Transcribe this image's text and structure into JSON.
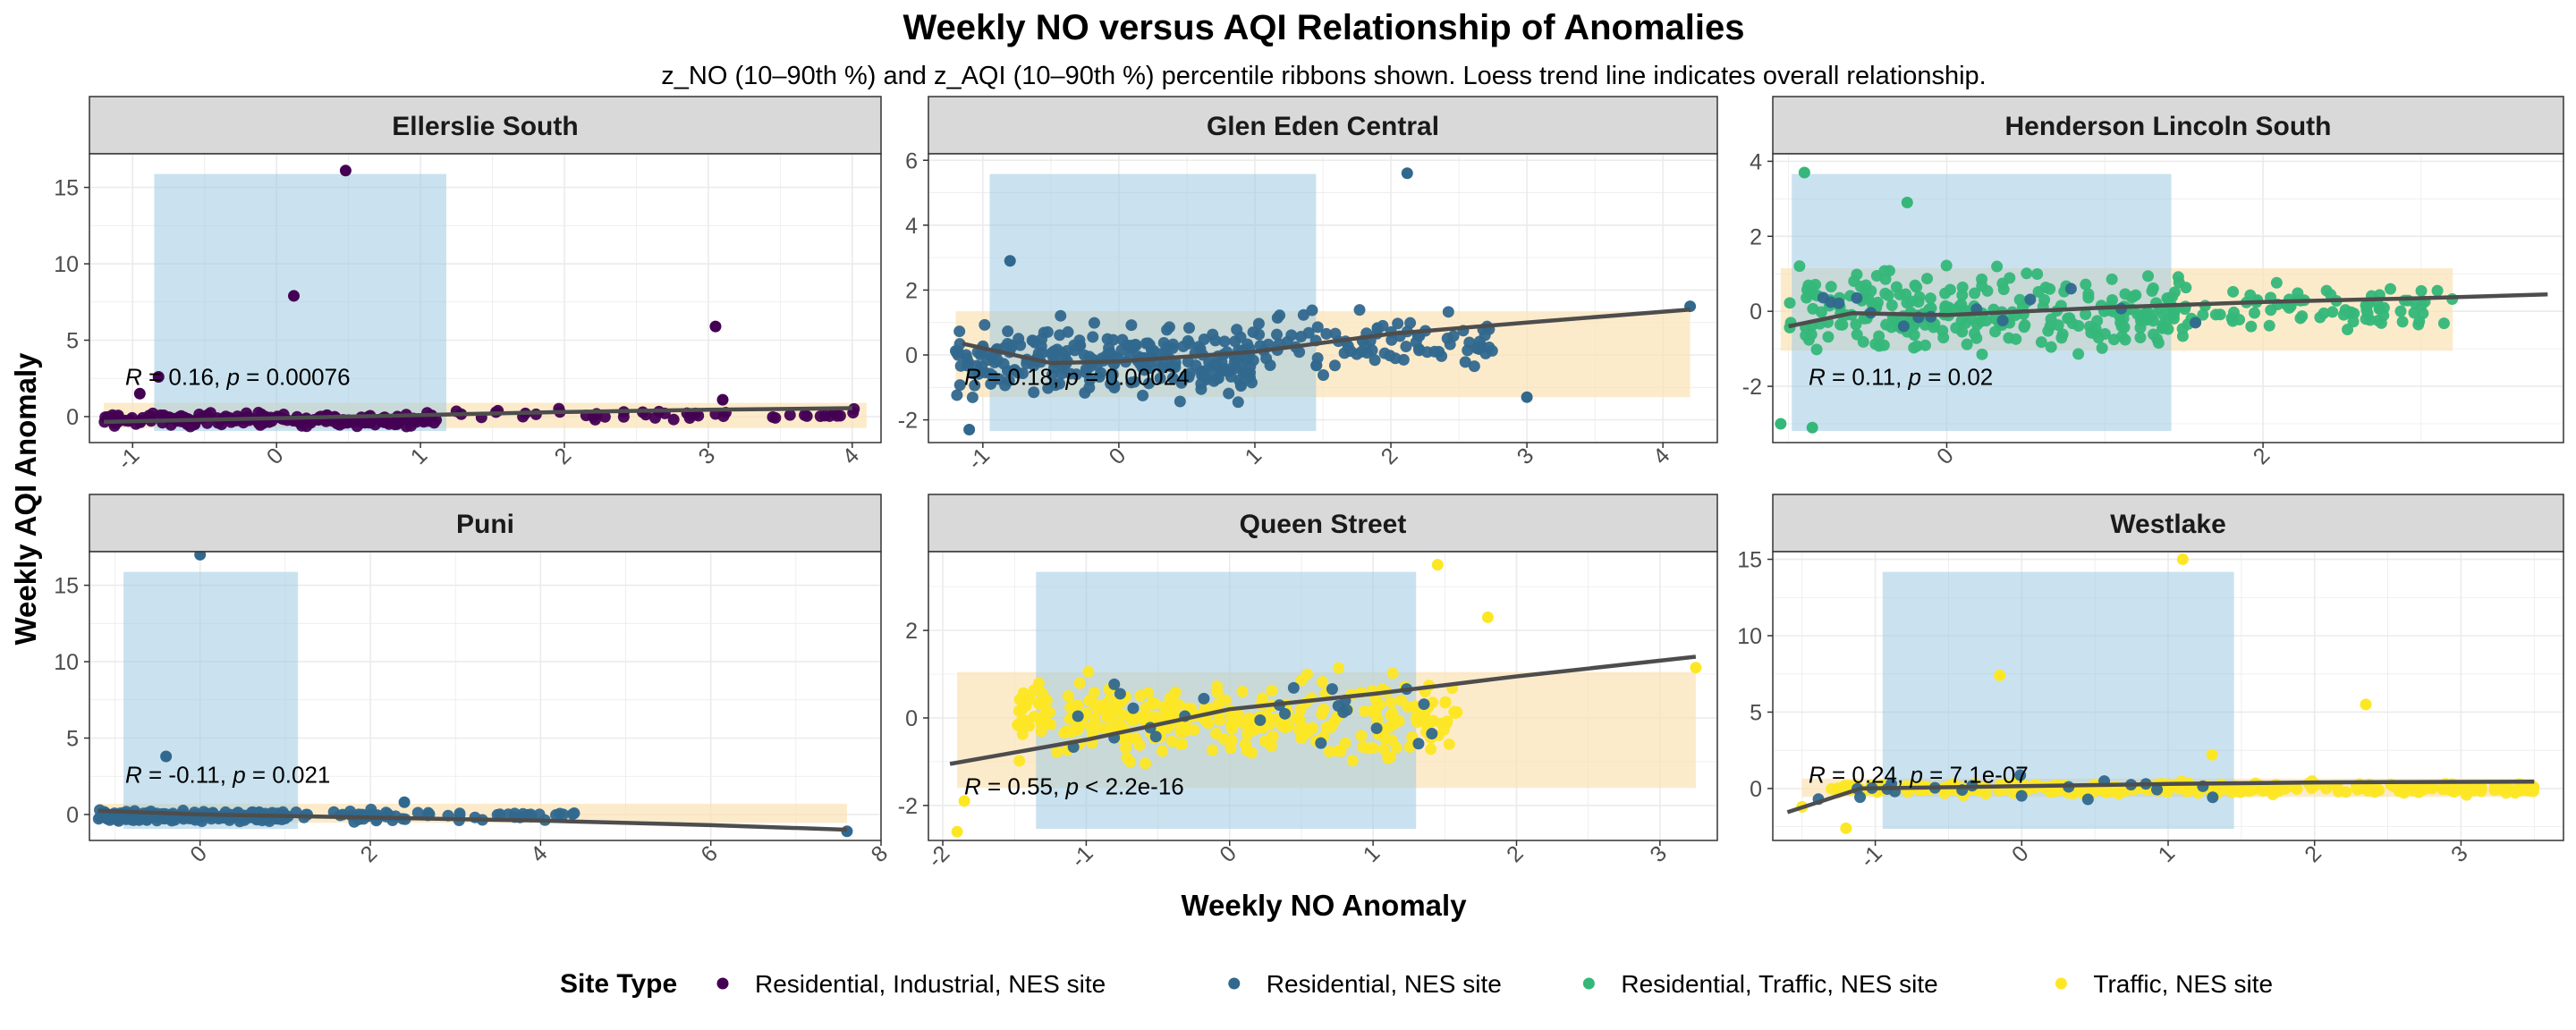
{
  "chart_data": {
    "type": "scatter",
    "title": "Weekly NO versus AQI Relationship of Anomalies",
    "subtitle": "z_NO (10–90th %) and z_AQI (10–90th %) percentile ribbons shown. Loess trend line indicates overall relationship.",
    "xlabel": "Weekly NO Anomaly",
    "ylabel": "Weekly AQI Anomaly",
    "legend": {
      "title": "Site Type",
      "position": "bottom",
      "items": [
        {
          "label": "Residential, Industrial, NES site",
          "color": "#440154"
        },
        {
          "label": "Residential, NES site",
          "color": "#31688E"
        },
        {
          "label": "Residential, Traffic, NES site",
          "color": "#35B779"
        },
        {
          "label": "Traffic, NES site",
          "color": "#FDE725"
        }
      ]
    },
    "ribbon_colors": {
      "no_band": "#9ECAE1",
      "aqi_band": "#FBE3B5"
    },
    "trend_color": "#4D4D4D",
    "grid": true,
    "panels": [
      {
        "name": "Ellerslie South",
        "xlim": [
          -1.3,
          4.2
        ],
        "ylim": [
          -1.7,
          17.2
        ],
        "xticks": [
          -1,
          0,
          1,
          2,
          3,
          4
        ],
        "yticks": [
          0,
          5,
          10,
          15
        ],
        "no_band": [
          -0.85,
          1.18
        ],
        "aqi_band": [
          -0.75,
          0.9
        ],
        "stat": {
          "r": "0.16",
          "p_op": "=",
          "p": "0.00076"
        },
        "groups": [
          {
            "site_type": 0,
            "n": 180,
            "x_range": [
              -1.2,
              1.1
            ],
            "y_mean": -0.2,
            "y_sd": 0.4
          },
          {
            "site_type": 0,
            "n": 45,
            "x_range": [
              1.1,
              4.1
            ],
            "y_mean": 0.1,
            "y_sd": 0.4
          }
        ],
        "outliers": [
          [
            0.48,
            16.1
          ],
          [
            0.12,
            7.9
          ],
          [
            3.05,
            5.9
          ],
          [
            -0.82,
            2.6
          ],
          [
            3.1,
            1.1
          ],
          [
            -0.95,
            1.5
          ]
        ],
        "trend": [
          [
            -1.2,
            -0.35
          ],
          [
            0,
            -0.1
          ],
          [
            1,
            0.1
          ],
          [
            2,
            0.3
          ],
          [
            3,
            0.45
          ],
          [
            4,
            0.55
          ]
        ]
      },
      {
        "name": "Glen Eden Central",
        "xlim": [
          -1.4,
          4.4
        ],
        "ylim": [
          -2.7,
          6.2
        ],
        "xticks": [
          -1,
          0,
          1,
          2,
          3,
          4
        ],
        "yticks": [
          -2,
          0,
          2,
          4,
          6
        ],
        "no_band": [
          -0.95,
          1.45
        ],
        "aqi_band": [
          -1.3,
          1.35
        ],
        "stat": {
          "r": "0.18",
          "p_op": "=",
          "p": "0.00024"
        },
        "groups": [
          {
            "site_type": 1,
            "n": 260,
            "x_range": [
              -1.2,
              1.0
            ],
            "y_mean": -0.15,
            "y_sd": 1.05
          },
          {
            "site_type": 1,
            "n": 90,
            "x_range": [
              1.0,
              2.8
            ],
            "y_mean": 0.3,
            "y_sd": 0.9
          }
        ],
        "outliers": [
          [
            2.12,
            5.6
          ],
          [
            -0.8,
            2.9
          ],
          [
            4.2,
            1.5
          ],
          [
            3.0,
            -1.3
          ],
          [
            -1.1,
            -2.3
          ]
        ],
        "trend": [
          [
            -1.15,
            0.35
          ],
          [
            -0.5,
            -0.25
          ],
          [
            0,
            -0.2
          ],
          [
            1,
            0.1
          ],
          [
            2,
            0.65
          ],
          [
            3,
            1.0
          ],
          [
            4.2,
            1.4
          ]
        ]
      },
      {
        "name": "Henderson Lincoln South",
        "xlim": [
          -1.1,
          3.9
        ],
        "ylim": [
          -3.5,
          4.2
        ],
        "xticks": [
          0,
          2
        ],
        "yticks": [
          -2,
          0,
          2,
          4
        ],
        "no_band": [
          -0.98,
          1.42
        ],
        "aqi_band": [
          -1.05,
          1.15
        ],
        "stat": {
          "r": "0.11",
          "p_op": "=",
          "p": "0.02"
        },
        "groups": [
          {
            "site_type": 2,
            "n": 260,
            "x_range": [
              -1.0,
              1.5
            ],
            "y_mean": 0.0,
            "y_sd": 1.0
          },
          {
            "site_type": 2,
            "n": 80,
            "x_range": [
              1.5,
              3.2
            ],
            "y_mean": 0.1,
            "y_sd": 0.6
          },
          {
            "site_type": 1,
            "n": 14,
            "x_range": [
              -0.9,
              1.6
            ],
            "y_mean": 0.0,
            "y_sd": 1.0
          }
        ],
        "outliers": [
          [
            -0.9,
            3.7
          ],
          [
            -0.25,
            2.9
          ],
          [
            -1.05,
            -3.0
          ],
          [
            -0.85,
            -3.1
          ]
        ],
        "trend": [
          [
            -1.0,
            -0.4
          ],
          [
            -0.6,
            -0.05
          ],
          [
            0,
            -0.1
          ],
          [
            1,
            0.1
          ],
          [
            2,
            0.25
          ],
          [
            3,
            0.35
          ],
          [
            3.8,
            0.45
          ]
        ]
      },
      {
        "name": "Puni",
        "xlim": [
          -1.3,
          8.0
        ],
        "ylim": [
          -1.7,
          17.2
        ],
        "xticks": [
          0,
          2,
          4,
          6,
          8
        ],
        "yticks": [
          0,
          5,
          10,
          15
        ],
        "no_band": [
          -0.9,
          1.15
        ],
        "aqi_band": [
          -0.55,
          0.7
        ],
        "stat": {
          "r": "-0.11",
          "p_op": "=",
          "p": "0.021"
        },
        "groups": [
          {
            "site_type": 1,
            "n": 200,
            "x_range": [
              -1.2,
              1.0
            ],
            "y_mean": -0.1,
            "y_sd": 0.35
          },
          {
            "site_type": 1,
            "n": 60,
            "x_range": [
              1.0,
              4.5
            ],
            "y_mean": -0.1,
            "y_sd": 0.3
          }
        ],
        "outliers": [
          [
            0.0,
            17.0
          ],
          [
            -0.4,
            3.8
          ],
          [
            7.6,
            -1.1
          ],
          [
            2.4,
            0.8
          ]
        ],
        "trend": [
          [
            -1.2,
            0.25
          ],
          [
            0,
            0.0
          ],
          [
            2,
            -0.2
          ],
          [
            4,
            -0.4
          ],
          [
            6,
            -0.7
          ],
          [
            7.6,
            -1.0
          ]
        ]
      },
      {
        "name": "Queen Street",
        "xlim": [
          -2.1,
          3.4
        ],
        "ylim": [
          -2.8,
          3.8
        ],
        "xticks": [
          -2,
          -1,
          0,
          1,
          2,
          3
        ],
        "yticks": [
          -2,
          0,
          2
        ],
        "no_band": [
          -1.35,
          1.3
        ],
        "aqi_band": [
          -1.6,
          1.05
        ],
        "stat": {
          "r": "0.55",
          "p_op": "<",
          "p": "2.2e-16"
        },
        "groups": [
          {
            "site_type": 3,
            "n": 300,
            "x_range": [
              -1.5,
              1.6
            ],
            "y_mean": 0.0,
            "y_sd": 0.85
          },
          {
            "site_type": 1,
            "n": 25,
            "x_range": [
              -1.2,
              1.5
            ],
            "y_mean": 0.0,
            "y_sd": 0.9
          }
        ],
        "outliers": [
          [
            1.45,
            3.5
          ],
          [
            -1.85,
            -1.9
          ],
          [
            -1.9,
            -2.6
          ],
          [
            3.25,
            1.15
          ],
          [
            1.8,
            2.3
          ]
        ],
        "trend": [
          [
            -1.95,
            -1.05
          ],
          [
            -1,
            -0.5
          ],
          [
            0,
            0.2
          ],
          [
            1,
            0.55
          ],
          [
            2,
            0.95
          ],
          [
            3.25,
            1.4
          ]
        ]
      },
      {
        "name": "Westlake",
        "xlim": [
          -1.7,
          3.7
        ],
        "ylim": [
          -3.4,
          15.5
        ],
        "xticks": [
          -1,
          0,
          1,
          2,
          3
        ],
        "yticks": [
          0,
          5,
          10,
          15
        ],
        "no_band": [
          -0.95,
          1.45
        ],
        "aqi_band": [
          -0.55,
          0.65
        ],
        "stat": {
          "r": "0.24",
          "p_op": "=",
          "p": "7.1e-07"
        },
        "groups": [
          {
            "site_type": 3,
            "n": 300,
            "x_range": [
              -1.3,
              3.5
            ],
            "y_mean": 0.0,
            "y_sd": 0.35
          },
          {
            "site_type": 1,
            "n": 20,
            "x_range": [
              -1.4,
              1.4
            ],
            "y_mean": 0.0,
            "y_sd": 0.8
          }
        ],
        "outliers": [
          [
            1.1,
            15.0
          ],
          [
            -0.15,
            7.4
          ],
          [
            2.35,
            5.5
          ],
          [
            -1.5,
            -1.2
          ],
          [
            -1.2,
            -2.6
          ],
          [
            1.3,
            2.2
          ]
        ],
        "trend": [
          [
            -1.6,
            -1.55
          ],
          [
            -1.1,
            0.0
          ],
          [
            0,
            0.15
          ],
          [
            1,
            0.3
          ],
          [
            2,
            0.4
          ],
          [
            3.5,
            0.45
          ]
        ]
      }
    ]
  }
}
